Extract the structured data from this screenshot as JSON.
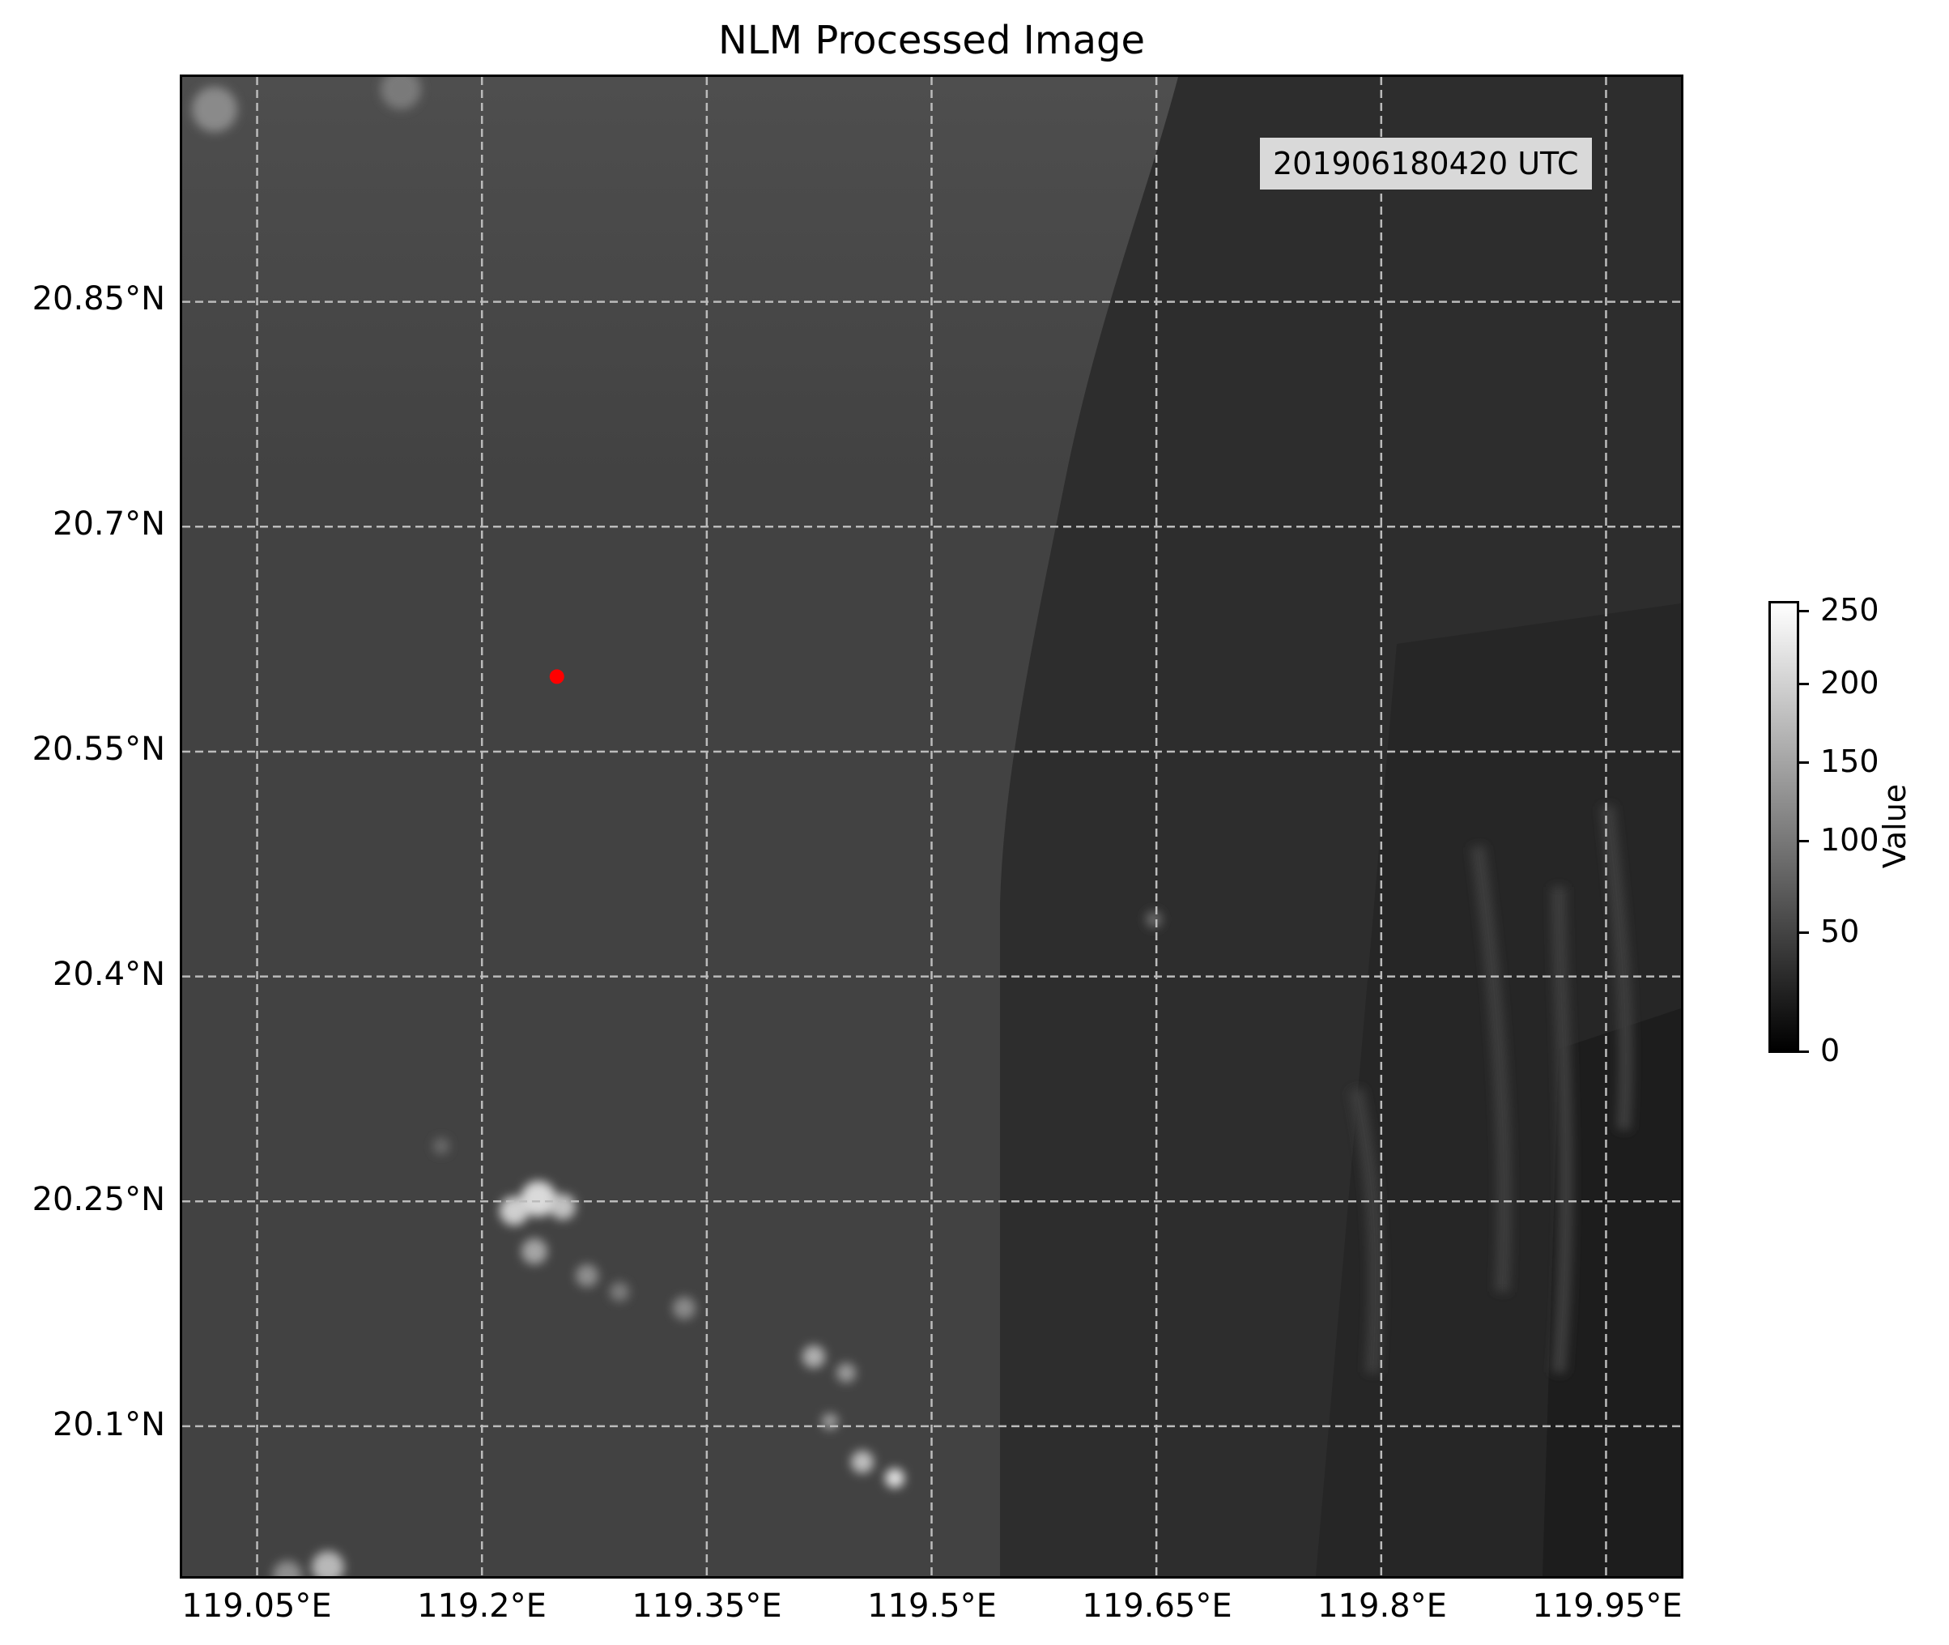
{
  "title": "NLM Processed Image",
  "timestamp": "201906180420 UTC",
  "lat_labels": [
    "20.85°N",
    "20.7°N",
    "20.55°N",
    "20.4°N",
    "20.25°N",
    "20.1°N"
  ],
  "lon_labels": [
    "119.05°E",
    "119.2°E",
    "119.35°E",
    "119.5°E",
    "119.65°E",
    "119.8°E",
    "119.95°E"
  ],
  "colorbar": {
    "label": "Value",
    "ticks": [
      "250",
      "200",
      "150",
      "100",
      "50",
      "0"
    ],
    "colormap": "gray",
    "min": 0,
    "max": 255
  },
  "marker": {
    "color": "#ff0000",
    "lat": 20.6,
    "lon": 119.25
  },
  "extent": {
    "lon_min": 119.0,
    "lon_max": 120.0,
    "lat_min": 20.0,
    "lat_max": 21.0
  },
  "gridline_color": "#bbbbbb",
  "gridline_style": "dashed"
}
